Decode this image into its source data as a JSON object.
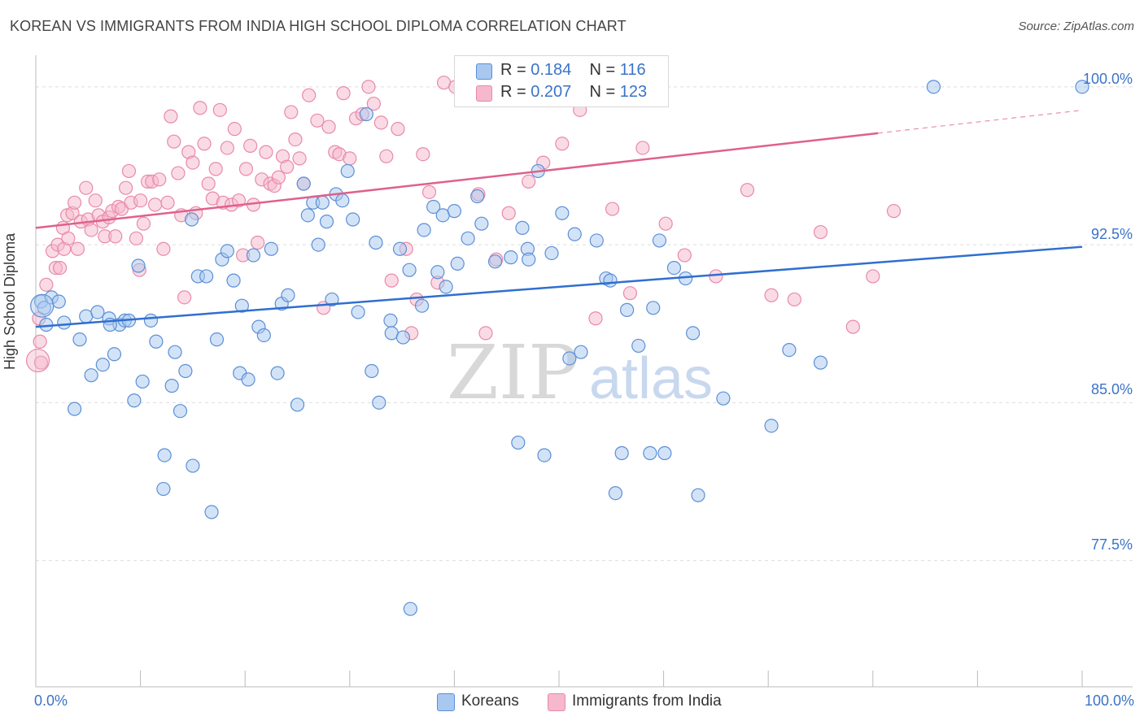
{
  "header": {
    "title": "KOREAN VS IMMIGRANTS FROM INDIA HIGH SCHOOL DIPLOMA CORRELATION CHART",
    "source": "Source: ZipAtlas.com"
  },
  "watermark": {
    "zip": "ZIP",
    "atlas": "atlas"
  },
  "legend": {
    "rows": [
      {
        "r_label": "R =",
        "r_value": "0.184",
        "n_label": "N =",
        "n_value": "116",
        "color": "#a8c8f0"
      },
      {
        "r_label": "R =",
        "r_value": "0.207",
        "n_label": "N =",
        "n_value": "123",
        "color": "#f5b8cc"
      }
    ]
  },
  "bottom_legend": [
    {
      "label": "Koreans",
      "color": "#a8c8f0"
    },
    {
      "label": "Immigrants from India",
      "color": "#f5b8cc"
    }
  ],
  "colors": {
    "koreans_fill": "#a8c8f0",
    "koreans_stroke": "#5b8fd6",
    "koreans_line": "#2f6fd0",
    "india_fill": "#f5b8cc",
    "india_stroke": "#e88aa8",
    "india_line": "#e0608c",
    "grid": "#dddddd",
    "axis_label": "#3b73c8"
  },
  "chart_data": {
    "type": "scatter",
    "title": "KOREAN VS IMMIGRANTS FROM INDIA HIGH SCHOOL DIPLOMA CORRELATION CHART",
    "xlabel": "",
    "ylabel": "High School Diploma",
    "xlim": [
      0,
      100
    ],
    "ylim": [
      71.5,
      101.5
    ],
    "x_tick_labels": [
      "0.0%",
      "100.0%"
    ],
    "y_ticks": [
      77.5,
      85.0,
      92.5,
      100.0
    ],
    "y_tick_labels": [
      "77.5%",
      "85.0%",
      "92.5%",
      "100.0%"
    ],
    "grid": true,
    "legend_position": "top-center",
    "series": [
      {
        "name": "Koreans",
        "r": 0.184,
        "n": 116,
        "trend": {
          "x0": 0,
          "y0": 88.6,
          "x1": 100,
          "y1": 92.4
        },
        "points": [
          [
            0.5,
            89.8
          ],
          [
            0.8,
            89.5
          ],
          [
            1.0,
            88.7
          ],
          [
            1.5,
            90.0
          ],
          [
            2.2,
            89.8
          ],
          [
            2.7,
            88.8
          ],
          [
            3.7,
            84.7
          ],
          [
            4.2,
            88.0
          ],
          [
            4.8,
            89.1
          ],
          [
            5.3,
            86.3
          ],
          [
            5.9,
            89.3
          ],
          [
            6.4,
            86.8
          ],
          [
            7.0,
            89.0
          ],
          [
            7.5,
            87.3
          ],
          [
            8.0,
            88.7
          ],
          [
            8.5,
            88.9
          ],
          [
            8.9,
            88.9
          ],
          [
            9.4,
            85.1
          ],
          [
            9.8,
            91.5
          ],
          [
            10.2,
            86.0
          ],
          [
            11.0,
            88.9
          ],
          [
            11.5,
            87.9
          ],
          [
            12.2,
            80.9
          ],
          [
            12.3,
            82.5
          ],
          [
            13.0,
            85.8
          ],
          [
            13.3,
            87.4
          ],
          [
            13.8,
            84.6
          ],
          [
            14.3,
            86.5
          ],
          [
            14.9,
            93.7
          ],
          [
            15.5,
            91.0
          ],
          [
            16.3,
            91.0
          ],
          [
            16.8,
            79.8
          ],
          [
            17.3,
            88.0
          ],
          [
            17.8,
            91.8
          ],
          [
            18.3,
            92.2
          ],
          [
            18.9,
            90.8
          ],
          [
            19.5,
            86.4
          ],
          [
            19.7,
            89.6
          ],
          [
            20.3,
            86.1
          ],
          [
            20.8,
            92.0
          ],
          [
            21.3,
            88.6
          ],
          [
            21.8,
            88.2
          ],
          [
            22.5,
            92.3
          ],
          [
            23.1,
            86.4
          ],
          [
            23.5,
            89.7
          ],
          [
            24.1,
            90.1
          ],
          [
            25.0,
            84.9
          ],
          [
            25.6,
            95.4
          ],
          [
            26.0,
            93.9
          ],
          [
            26.5,
            94.5
          ],
          [
            27.0,
            92.5
          ],
          [
            27.4,
            94.5
          ],
          [
            27.8,
            93.6
          ],
          [
            28.3,
            89.9
          ],
          [
            28.7,
            94.9
          ],
          [
            29.3,
            94.6
          ],
          [
            29.8,
            96.0
          ],
          [
            30.3,
            93.7
          ],
          [
            30.8,
            89.3
          ],
          [
            31.6,
            98.7
          ],
          [
            32.1,
            86.5
          ],
          [
            32.5,
            92.6
          ],
          [
            32.8,
            85.0
          ],
          [
            33.9,
            88.9
          ],
          [
            34.0,
            88.3
          ],
          [
            34.8,
            92.3
          ],
          [
            35.1,
            88.1
          ],
          [
            35.7,
            91.3
          ],
          [
            35.8,
            75.2
          ],
          [
            36.9,
            89.6
          ],
          [
            37.1,
            93.2
          ],
          [
            38.0,
            94.3
          ],
          [
            38.4,
            91.2
          ],
          [
            38.9,
            93.9
          ],
          [
            39.2,
            90.5
          ],
          [
            40.0,
            94.1
          ],
          [
            40.3,
            91.6
          ],
          [
            41.3,
            92.8
          ],
          [
            42.2,
            94.8
          ],
          [
            42.6,
            93.5
          ],
          [
            43.9,
            91.7
          ],
          [
            45.4,
            91.9
          ],
          [
            46.1,
            83.1
          ],
          [
            46.5,
            93.3
          ],
          [
            47.0,
            92.3
          ],
          [
            47.1,
            91.8
          ],
          [
            48.0,
            96.0
          ],
          [
            48.6,
            82.5
          ],
          [
            49.3,
            92.1
          ],
          [
            50.3,
            94.0
          ],
          [
            51.0,
            87.1
          ],
          [
            51.5,
            93.0
          ],
          [
            52.1,
            87.4
          ],
          [
            53.6,
            92.7
          ],
          [
            54.5,
            90.9
          ],
          [
            54.9,
            90.8
          ],
          [
            55.4,
            80.7
          ],
          [
            56.0,
            82.6
          ],
          [
            56.5,
            89.4
          ],
          [
            57.6,
            87.7
          ],
          [
            58.7,
            82.6
          ],
          [
            59.0,
            89.5
          ],
          [
            59.6,
            92.7
          ],
          [
            60.1,
            82.6
          ],
          [
            61.0,
            91.4
          ],
          [
            62.1,
            90.9
          ],
          [
            62.8,
            88.3
          ],
          [
            63.3,
            80.6
          ],
          [
            65.7,
            85.2
          ],
          [
            70.3,
            83.9
          ],
          [
            72.0,
            87.5
          ],
          [
            75.0,
            86.9
          ],
          [
            85.8,
            100.0
          ],
          [
            100.0,
            100.0
          ],
          [
            7.1,
            88.7
          ],
          [
            15.0,
            82.0
          ]
        ]
      },
      {
        "name": "Immigrants from India",
        "r": 0.207,
        "n": 123,
        "trend": {
          "x0": 0,
          "y0": 93.3,
          "x1": 80.5,
          "y1": 97.8
        },
        "points": [
          [
            0.3,
            89.0
          ],
          [
            0.4,
            87.9
          ],
          [
            0.5,
            86.9
          ],
          [
            1.0,
            90.6
          ],
          [
            1.6,
            92.2
          ],
          [
            1.9,
            91.4
          ],
          [
            2.1,
            92.5
          ],
          [
            2.3,
            91.4
          ],
          [
            2.6,
            93.3
          ],
          [
            2.7,
            92.3
          ],
          [
            3.0,
            93.9
          ],
          [
            3.1,
            92.8
          ],
          [
            3.5,
            94.0
          ],
          [
            3.7,
            94.5
          ],
          [
            4.0,
            92.3
          ],
          [
            4.3,
            93.6
          ],
          [
            4.8,
            95.2
          ],
          [
            5.0,
            93.7
          ],
          [
            5.3,
            93.2
          ],
          [
            5.7,
            94.6
          ],
          [
            6.0,
            93.9
          ],
          [
            6.4,
            93.6
          ],
          [
            6.6,
            92.9
          ],
          [
            7.0,
            93.8
          ],
          [
            7.3,
            94.1
          ],
          [
            7.6,
            92.9
          ],
          [
            7.9,
            94.3
          ],
          [
            8.2,
            94.2
          ],
          [
            8.6,
            95.2
          ],
          [
            8.9,
            96.0
          ],
          [
            9.1,
            94.5
          ],
          [
            9.6,
            92.8
          ],
          [
            9.9,
            91.3
          ],
          [
            10.0,
            94.6
          ],
          [
            10.3,
            93.5
          ],
          [
            10.7,
            95.5
          ],
          [
            11.1,
            95.5
          ],
          [
            11.4,
            94.4
          ],
          [
            11.8,
            95.6
          ],
          [
            12.2,
            92.3
          ],
          [
            12.6,
            94.5
          ],
          [
            12.9,
            98.6
          ],
          [
            13.2,
            97.4
          ],
          [
            13.6,
            95.9
          ],
          [
            13.9,
            93.9
          ],
          [
            14.2,
            90.0
          ],
          [
            14.6,
            96.9
          ],
          [
            15.0,
            96.4
          ],
          [
            15.3,
            94.0
          ],
          [
            15.7,
            99.0
          ],
          [
            16.1,
            97.3
          ],
          [
            16.5,
            95.4
          ],
          [
            16.9,
            94.7
          ],
          [
            17.2,
            96.1
          ],
          [
            17.6,
            98.9
          ],
          [
            17.9,
            94.5
          ],
          [
            18.3,
            97.1
          ],
          [
            18.7,
            94.4
          ],
          [
            19.0,
            98.0
          ],
          [
            19.4,
            94.6
          ],
          [
            19.8,
            92.0
          ],
          [
            20.1,
            96.1
          ],
          [
            20.5,
            97.2
          ],
          [
            20.8,
            94.4
          ],
          [
            21.2,
            92.6
          ],
          [
            21.6,
            95.6
          ],
          [
            22.0,
            96.9
          ],
          [
            22.4,
            95.4
          ],
          [
            22.8,
            95.3
          ],
          [
            23.2,
            95.7
          ],
          [
            23.6,
            96.7
          ],
          [
            24.0,
            96.2
          ],
          [
            24.4,
            98.8
          ],
          [
            24.8,
            97.5
          ],
          [
            25.2,
            96.6
          ],
          [
            25.6,
            95.4
          ],
          [
            26.1,
            99.6
          ],
          [
            26.9,
            98.4
          ],
          [
            27.5,
            89.5
          ],
          [
            28.0,
            98.1
          ],
          [
            28.6,
            96.9
          ],
          [
            29.0,
            96.8
          ],
          [
            29.4,
            99.7
          ],
          [
            30.0,
            96.6
          ],
          [
            30.6,
            98.5
          ],
          [
            31.2,
            98.7
          ],
          [
            31.8,
            100.0
          ],
          [
            32.3,
            99.2
          ],
          [
            33.0,
            98.3
          ],
          [
            33.5,
            96.7
          ],
          [
            34.0,
            90.8
          ],
          [
            34.6,
            98.0
          ],
          [
            35.4,
            92.3
          ],
          [
            35.9,
            88.3
          ],
          [
            36.4,
            89.9
          ],
          [
            37.0,
            96.8
          ],
          [
            37.6,
            95.0
          ],
          [
            38.4,
            90.7
          ],
          [
            39.0,
            100.2
          ],
          [
            40.1,
            100.0
          ],
          [
            41.2,
            100.1
          ],
          [
            42.3,
            94.9
          ],
          [
            43.0,
            88.3
          ],
          [
            44.0,
            91.8
          ],
          [
            45.2,
            94.0
          ],
          [
            47.1,
            95.5
          ],
          [
            48.5,
            96.4
          ],
          [
            50.3,
            97.3
          ],
          [
            52.0,
            98.9
          ],
          [
            53.5,
            89.0
          ],
          [
            55.1,
            94.2
          ],
          [
            56.8,
            90.2
          ],
          [
            58.0,
            97.1
          ],
          [
            60.2,
            93.5
          ],
          [
            62.0,
            92.0
          ],
          [
            65.0,
            91.0
          ],
          [
            68.0,
            95.1
          ],
          [
            70.3,
            90.1
          ],
          [
            72.5,
            89.9
          ],
          [
            75.0,
            93.1
          ],
          [
            78.1,
            88.6
          ],
          [
            80.0,
            91.0
          ],
          [
            82.0,
            94.1
          ]
        ]
      }
    ]
  }
}
